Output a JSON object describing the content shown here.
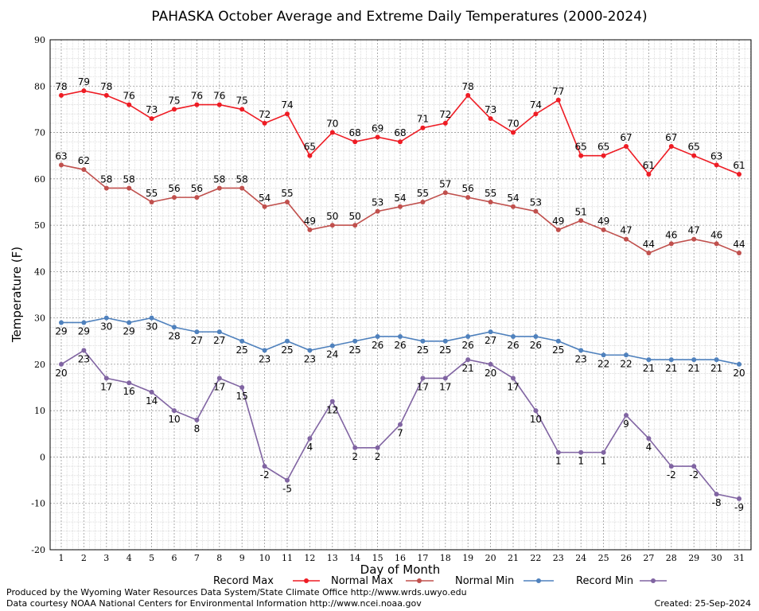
{
  "chart_data": {
    "type": "line",
    "title": "PAHASKA October Average and Extreme Daily Temperatures (2000-2024)",
    "xlabel": "Day of Month",
    "ylabel": "Temperature (F)",
    "ylim": [
      -20,
      90
    ],
    "yticks": [
      -20,
      -10,
      0,
      10,
      20,
      30,
      40,
      50,
      60,
      70,
      80,
      90
    ],
    "x": [
      1,
      2,
      3,
      4,
      5,
      6,
      7,
      8,
      9,
      10,
      11,
      12,
      13,
      14,
      15,
      16,
      17,
      18,
      19,
      20,
      21,
      22,
      23,
      24,
      25,
      26,
      27,
      28,
      29,
      30,
      31
    ],
    "grid": true,
    "legend_position": "bottom",
    "series": [
      {
        "name": "Record Max",
        "color": "#ee1c24",
        "values": [
          78,
          79,
          78,
          76,
          73,
          75,
          76,
          76,
          75,
          72,
          74,
          65,
          70,
          68,
          69,
          68,
          71,
          72,
          78,
          73,
          70,
          74,
          77,
          65,
          65,
          67,
          61,
          67,
          65,
          63,
          61
        ]
      },
      {
        "name": "Normal Max",
        "color": "#c0504d",
        "values": [
          63,
          62,
          58,
          58,
          55,
          56,
          56,
          58,
          58,
          54,
          55,
          49,
          50,
          50,
          53,
          54,
          55,
          57,
          56,
          55,
          54,
          53,
          49,
          51,
          49,
          47,
          44,
          46,
          47,
          46,
          44
        ]
      },
      {
        "name": "Normal Min",
        "color": "#4f81bd",
        "values": [
          29,
          29,
          30,
          29,
          30,
          28,
          27,
          27,
          25,
          23,
          25,
          23,
          24,
          25,
          26,
          26,
          25,
          25,
          26,
          27,
          26,
          26,
          25,
          23,
          22,
          22,
          21,
          21,
          21,
          21,
          20
        ]
      },
      {
        "name": "Record Min",
        "color": "#8064a2",
        "values": [
          20,
          23,
          17,
          16,
          14,
          10,
          8,
          17,
          15,
          -2,
          -5,
          4,
          12,
          2,
          2,
          7,
          17,
          17,
          21,
          20,
          17,
          10,
          1,
          1,
          1,
          9,
          4,
          -2,
          -2,
          -8,
          -9
        ]
      }
    ]
  },
  "footer": {
    "producer": "Produced by the Wyoming Water Resources Data System/State Climate Office http://www.wrds.uwyo.edu",
    "courtesy": "Data courtesy NOAA National Centers for Environmental Information http://www.ncei.noaa.gov",
    "created": "Created:  25-Sep-2024"
  }
}
